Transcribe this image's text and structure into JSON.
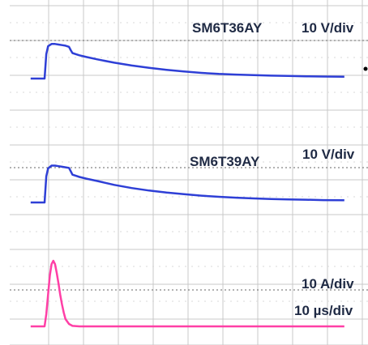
{
  "chart_data": [
    {
      "type": "line",
      "label": "SM6T36AY",
      "scale_label": "10 V/div",
      "color": "#2e3fd6",
      "x_unit": "us",
      "x": [
        -4,
        0,
        0.5,
        1,
        2,
        3,
        4,
        5,
        6,
        7,
        7.5,
        8,
        9,
        10,
        12,
        15,
        20,
        25,
        30,
        35,
        40,
        45,
        50,
        55,
        60,
        65,
        70,
        75,
        80,
        86
      ],
      "y": [
        0,
        0,
        4.3,
        5.7,
        6.1,
        6.1,
        6.0,
        5.9,
        5.8,
        5.6,
        5.0,
        4.5,
        4.3,
        4.1,
        3.8,
        3.4,
        2.8,
        2.3,
        1.9,
        1.55,
        1.25,
        1.0,
        0.82,
        0.7,
        0.6,
        0.52,
        0.45,
        0.4,
        0.36,
        0.33
      ]
    },
    {
      "type": "line",
      "label": "SM6T39AY",
      "scale_label": "10 V/div",
      "color": "#2e3fd6",
      "x_unit": "us",
      "x": [
        -4,
        0,
        0.5,
        1,
        2,
        3,
        4,
        5,
        6,
        7,
        7.5,
        8,
        9,
        10,
        12,
        15,
        20,
        25,
        30,
        35,
        40,
        45,
        50,
        55,
        60,
        65,
        70,
        75,
        80,
        86
      ],
      "y": [
        0,
        0,
        4.6,
        6.0,
        6.5,
        6.5,
        6.4,
        6.3,
        6.2,
        6.1,
        5.5,
        4.9,
        4.7,
        4.5,
        4.2,
        3.8,
        3.1,
        2.55,
        2.1,
        1.75,
        1.45,
        1.2,
        1.0,
        0.85,
        0.72,
        0.62,
        0.55,
        0.48,
        0.42,
        0.38
      ]
    },
    {
      "type": "line",
      "label": "",
      "scale_label": "10 A/div",
      "time_scale_label": "10 µs/div",
      "color": "#ff3fa6",
      "x_unit": "us",
      "x": [
        -4,
        0,
        0.5,
        1,
        1.5,
        2,
        2.5,
        3,
        3.5,
        4,
        4.5,
        5,
        5.5,
        6,
        7,
        8,
        10,
        20,
        40,
        60,
        86
      ],
      "y": [
        0,
        0,
        2.5,
        6.5,
        10.5,
        12.8,
        13.5,
        12.8,
        11.0,
        8.8,
        6.5,
        4.5,
        2.8,
        1.5,
        0.5,
        0.1,
        0,
        0,
        0,
        0,
        0
      ]
    }
  ]
}
